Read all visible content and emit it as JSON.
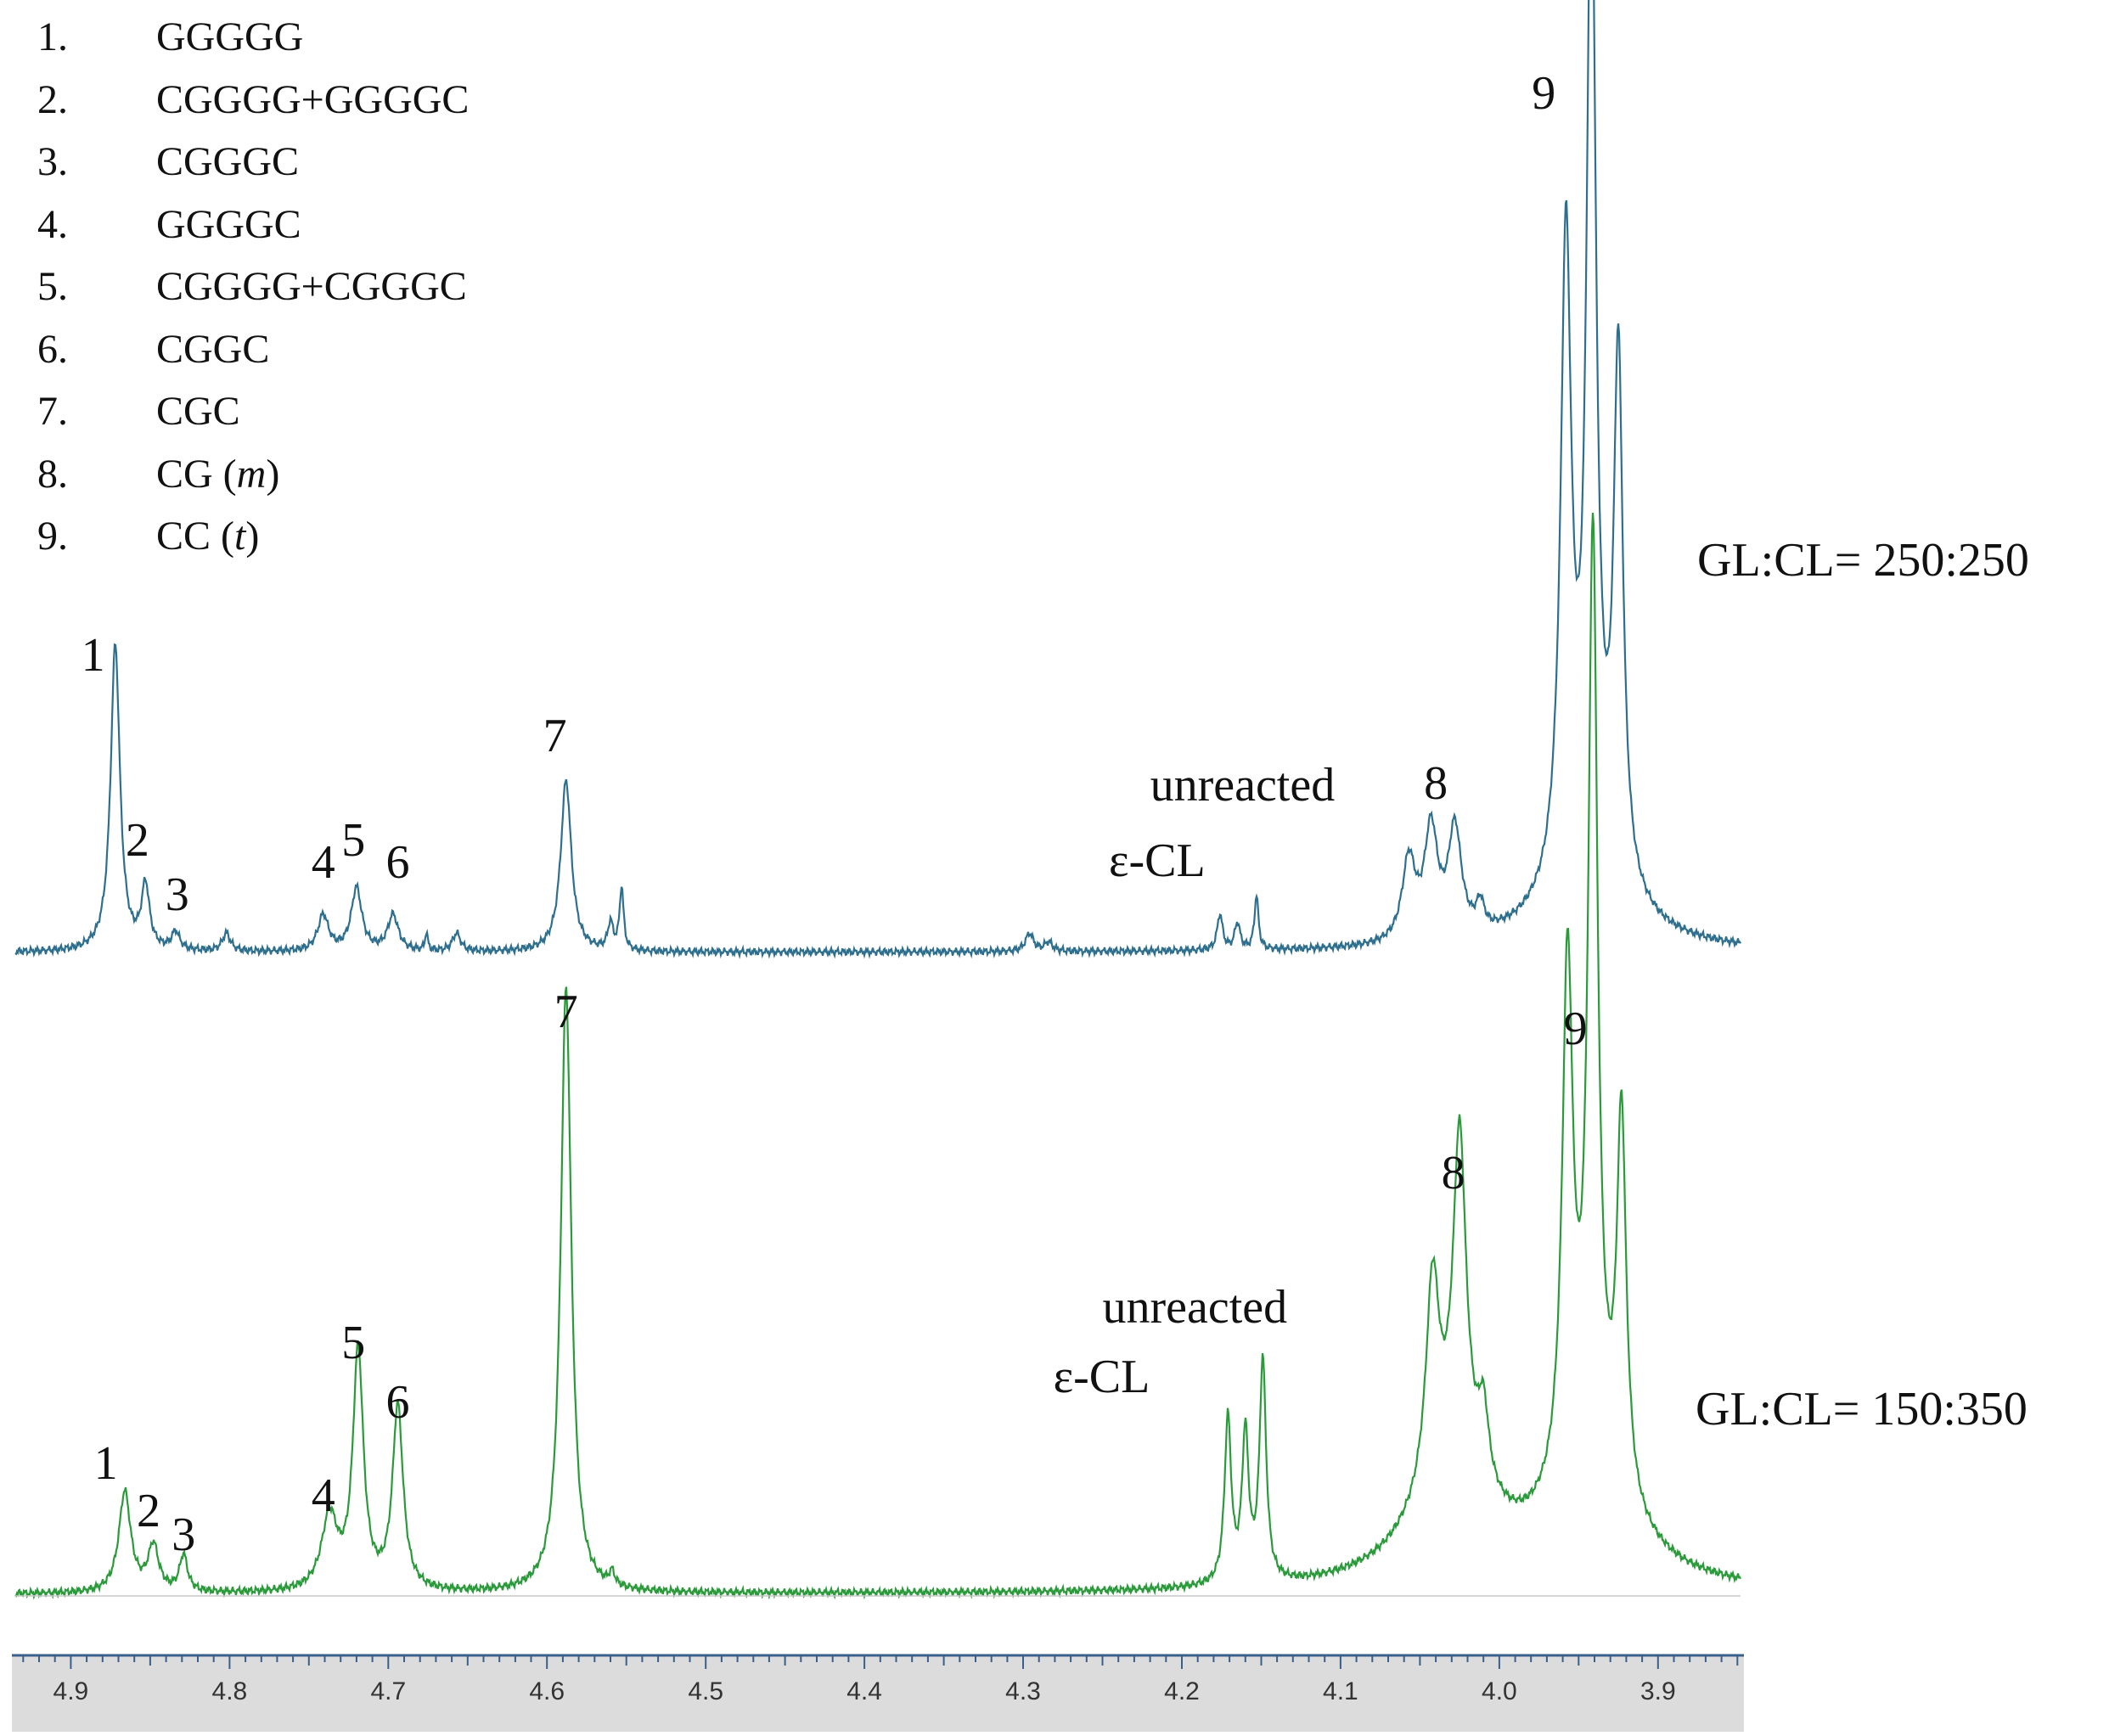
{
  "legend": [
    {
      "num": "1.",
      "label": "GGGGG",
      "italic": ""
    },
    {
      "num": "2.",
      "label": "CGGGG+GGGGC",
      "italic": ""
    },
    {
      "num": "3.",
      "label": "CGGGC",
      "italic": ""
    },
    {
      "num": "4.",
      "label": "GGGGC",
      "italic": ""
    },
    {
      "num": "5.",
      "label": "CGGGG+CGGGC",
      "italic": ""
    },
    {
      "num": "6.",
      "label": "CGGC",
      "italic": ""
    },
    {
      "num": "7.",
      "label": "CGC",
      "italic": ""
    },
    {
      "num": "8.",
      "label": "CG (",
      "italic": "m",
      "suffix": ")"
    },
    {
      "num": "9.",
      "label": "CC (",
      "italic": "t",
      "suffix": ")"
    }
  ],
  "chart_data": {
    "type": "line",
    "xlim": [
      4.935,
      3.848
    ],
    "x_ticks": [
      "4.9",
      "4.8",
      "4.7",
      "4.6",
      "4.5",
      "4.4",
      "4.3",
      "4.2",
      "4.1",
      "4.0",
      "3.9"
    ],
    "series": [
      {
        "name": "GL:CL= 250:250",
        "color": "#2e6f8e",
        "peaks": [
          {
            "ppm": 4.872,
            "height": 0.34,
            "width": 0.0035
          },
          {
            "ppm": 4.853,
            "height": 0.07,
            "width": 0.003
          },
          {
            "ppm": 4.834,
            "height": 0.02,
            "width": 0.003
          },
          {
            "ppm": 4.802,
            "height": 0.02,
            "width": 0.003
          },
          {
            "ppm": 4.741,
            "height": 0.04,
            "width": 0.004
          },
          {
            "ppm": 4.72,
            "height": 0.07,
            "width": 0.004
          },
          {
            "ppm": 4.697,
            "height": 0.04,
            "width": 0.004
          },
          {
            "ppm": 4.676,
            "height": 0.02,
            "width": 0.001
          },
          {
            "ppm": 4.657,
            "height": 0.02,
            "width": 0.003
          },
          {
            "ppm": 4.588,
            "height": 0.19,
            "width": 0.004
          },
          {
            "ppm": 4.56,
            "height": 0.03,
            "width": 0.002
          },
          {
            "ppm": 4.553,
            "height": 0.07,
            "width": 0.0015
          },
          {
            "ppm": 4.296,
            "height": 0.02,
            "width": 0.003
          },
          {
            "ppm": 4.284,
            "height": 0.01,
            "width": 0.003
          },
          {
            "ppm": 4.176,
            "height": 0.04,
            "width": 0.002
          },
          {
            "ppm": 4.165,
            "height": 0.03,
            "width": 0.002
          },
          {
            "ppm": 4.153,
            "height": 0.06,
            "width": 0.0015
          },
          {
            "ppm": 4.057,
            "height": 0.09,
            "width": 0.005
          },
          {
            "ppm": 4.043,
            "height": 0.12,
            "width": 0.005
          },
          {
            "ppm": 4.028,
            "height": 0.12,
            "width": 0.005
          },
          {
            "ppm": 4.012,
            "height": 0.03,
            "width": 0.003
          },
          {
            "ppm": 3.958,
            "height": 0.7,
            "width": 0.004
          },
          {
            "ppm": 3.942,
            "height": 1.1,
            "width": 0.0035
          },
          {
            "ppm": 3.925,
            "height": 0.58,
            "width": 0.0035
          },
          {
            "ppm": 3.944,
            "height": 0.09,
            "width": 0.028
          }
        ]
      },
      {
        "name": "GL:CL= 150:350",
        "color": "#2a9a3a",
        "peaks": [
          {
            "ppm": 4.866,
            "height": 0.11,
            "width": 0.0045
          },
          {
            "ppm": 4.848,
            "height": 0.05,
            "width": 0.004
          },
          {
            "ppm": 4.829,
            "height": 0.04,
            "width": 0.003
          },
          {
            "ppm": 4.737,
            "height": 0.08,
            "width": 0.006
          },
          {
            "ppm": 4.719,
            "height": 0.26,
            "width": 0.004
          },
          {
            "ppm": 4.694,
            "height": 0.2,
            "width": 0.004
          },
          {
            "ppm": 4.588,
            "height": 0.66,
            "width": 0.004
          },
          {
            "ppm": 4.559,
            "height": 0.015,
            "width": 0.002
          },
          {
            "ppm": 4.171,
            "height": 0.18,
            "width": 0.0025
          },
          {
            "ppm": 4.16,
            "height": 0.16,
            "width": 0.0025
          },
          {
            "ppm": 4.149,
            "height": 0.24,
            "width": 0.0025
          },
          {
            "ppm": 4.042,
            "height": 0.22,
            "width": 0.005
          },
          {
            "ppm": 4.025,
            "height": 0.36,
            "width": 0.005
          },
          {
            "ppm": 4.01,
            "height": 0.08,
            "width": 0.004
          },
          {
            "ppm": 3.957,
            "height": 0.56,
            "width": 0.004
          },
          {
            "ppm": 3.941,
            "height": 1.0,
            "width": 0.0035
          },
          {
            "ppm": 3.923,
            "height": 0.41,
            "width": 0.0035
          },
          {
            "ppm": 4.03,
            "height": 0.12,
            "width": 0.03
          },
          {
            "ppm": 3.942,
            "height": 0.12,
            "width": 0.03
          }
        ]
      }
    ],
    "annotations": {
      "top": [
        {
          "text": "1",
          "ppm": 4.886,
          "row": "top",
          "dy": -0.01
        },
        {
          "text": "2",
          "ppm": 4.858,
          "row": "top",
          "dy": 0
        },
        {
          "text": "3",
          "ppm": 4.833,
          "row": "top",
          "dy": 0
        },
        {
          "text": "4",
          "ppm": 4.741,
          "row": "top",
          "dy": 0
        },
        {
          "text": "5",
          "ppm": 4.722,
          "row": "top",
          "dy": 0
        },
        {
          "text": "6",
          "ppm": 4.694,
          "row": "top",
          "dy": 0
        },
        {
          "text": "7",
          "ppm": 4.595,
          "row": "top",
          "dy": 0
        },
        {
          "text": "unreacted",
          "ppm": 4.22,
          "row": "top",
          "dy": 0
        },
        {
          "text": "ε-CL",
          "ppm": 4.246,
          "row": "top",
          "dy": 0
        },
        {
          "text": "8",
          "ppm": 4.04,
          "row": "top",
          "dy": 0
        },
        {
          "text": "9",
          "ppm": 3.972,
          "row": "top",
          "dy": 0
        }
      ],
      "bottom": [
        {
          "text": "1",
          "ppm": 4.878
        },
        {
          "text": "2",
          "ppm": 4.851
        },
        {
          "text": "3",
          "ppm": 4.829
        },
        {
          "text": "4",
          "ppm": 4.741
        },
        {
          "text": "5",
          "ppm": 4.722
        },
        {
          "text": "6",
          "ppm": 4.694
        },
        {
          "text": "7",
          "ppm": 4.588
        },
        {
          "text": "unreacted",
          "ppm": 4.25
        },
        {
          "text": "ε-CL",
          "ppm": 4.281
        },
        {
          "text": "8",
          "ppm": 4.029
        },
        {
          "text": "9",
          "ppm": 3.952
        }
      ]
    }
  }
}
